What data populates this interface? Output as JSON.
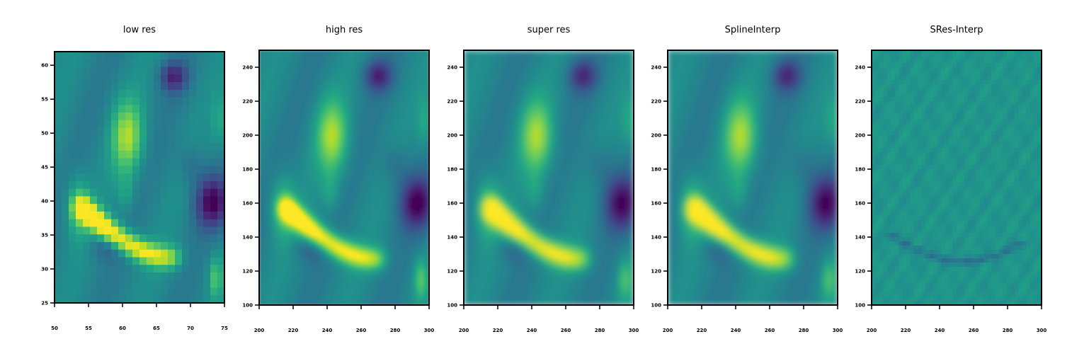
{
  "chart_data": [
    {
      "type": "heatmap",
      "title": "low res",
      "colormap": "viridis",
      "x_ticks": [
        "50",
        "55",
        "60",
        "65",
        "70",
        "75"
      ],
      "y_ticks": [
        "25",
        "30",
        "35",
        "40",
        "45",
        "50",
        "55",
        "60"
      ],
      "xlim": [
        50,
        75
      ],
      "ylim": [
        25,
        62
      ],
      "resolution": "coarse"
    },
    {
      "type": "heatmap",
      "title": "high res",
      "colormap": "viridis",
      "x_ticks": [
        "200",
        "220",
        "240",
        "260",
        "280",
        "300"
      ],
      "y_ticks": [
        "100",
        "120",
        "140",
        "160",
        "180",
        "200",
        "220",
        "240"
      ],
      "xlim": [
        200,
        300
      ],
      "ylim": [
        100,
        250
      ],
      "resolution": "fine"
    },
    {
      "type": "heatmap",
      "title": "super res",
      "colormap": "viridis",
      "x_ticks": [
        "200",
        "220",
        "240",
        "260",
        "280",
        "300"
      ],
      "y_ticks": [
        "100",
        "120",
        "140",
        "160",
        "180",
        "200",
        "220",
        "240"
      ],
      "xlim": [
        200,
        300
      ],
      "ylim": [
        100,
        250
      ],
      "resolution": "smooth"
    },
    {
      "type": "heatmap",
      "title": "SplineInterp",
      "colormap": "viridis",
      "x_ticks": [
        "200",
        "220",
        "240",
        "260",
        "280",
        "300"
      ],
      "y_ticks": [
        "100",
        "120",
        "140",
        "160",
        "180",
        "200",
        "220",
        "240"
      ],
      "xlim": [
        200,
        300
      ],
      "ylim": [
        100,
        250
      ],
      "resolution": "smooth"
    },
    {
      "type": "heatmap",
      "title": "SRes-Interp",
      "colormap": "viridis",
      "x_ticks": [
        "200",
        "220",
        "240",
        "260",
        "280",
        "300"
      ],
      "y_ticks": [
        "100",
        "120",
        "140",
        "160",
        "180",
        "200",
        "220",
        "240"
      ],
      "xlim": [
        200,
        300
      ],
      "ylim": [
        100,
        250
      ],
      "resolution": "difference"
    }
  ]
}
